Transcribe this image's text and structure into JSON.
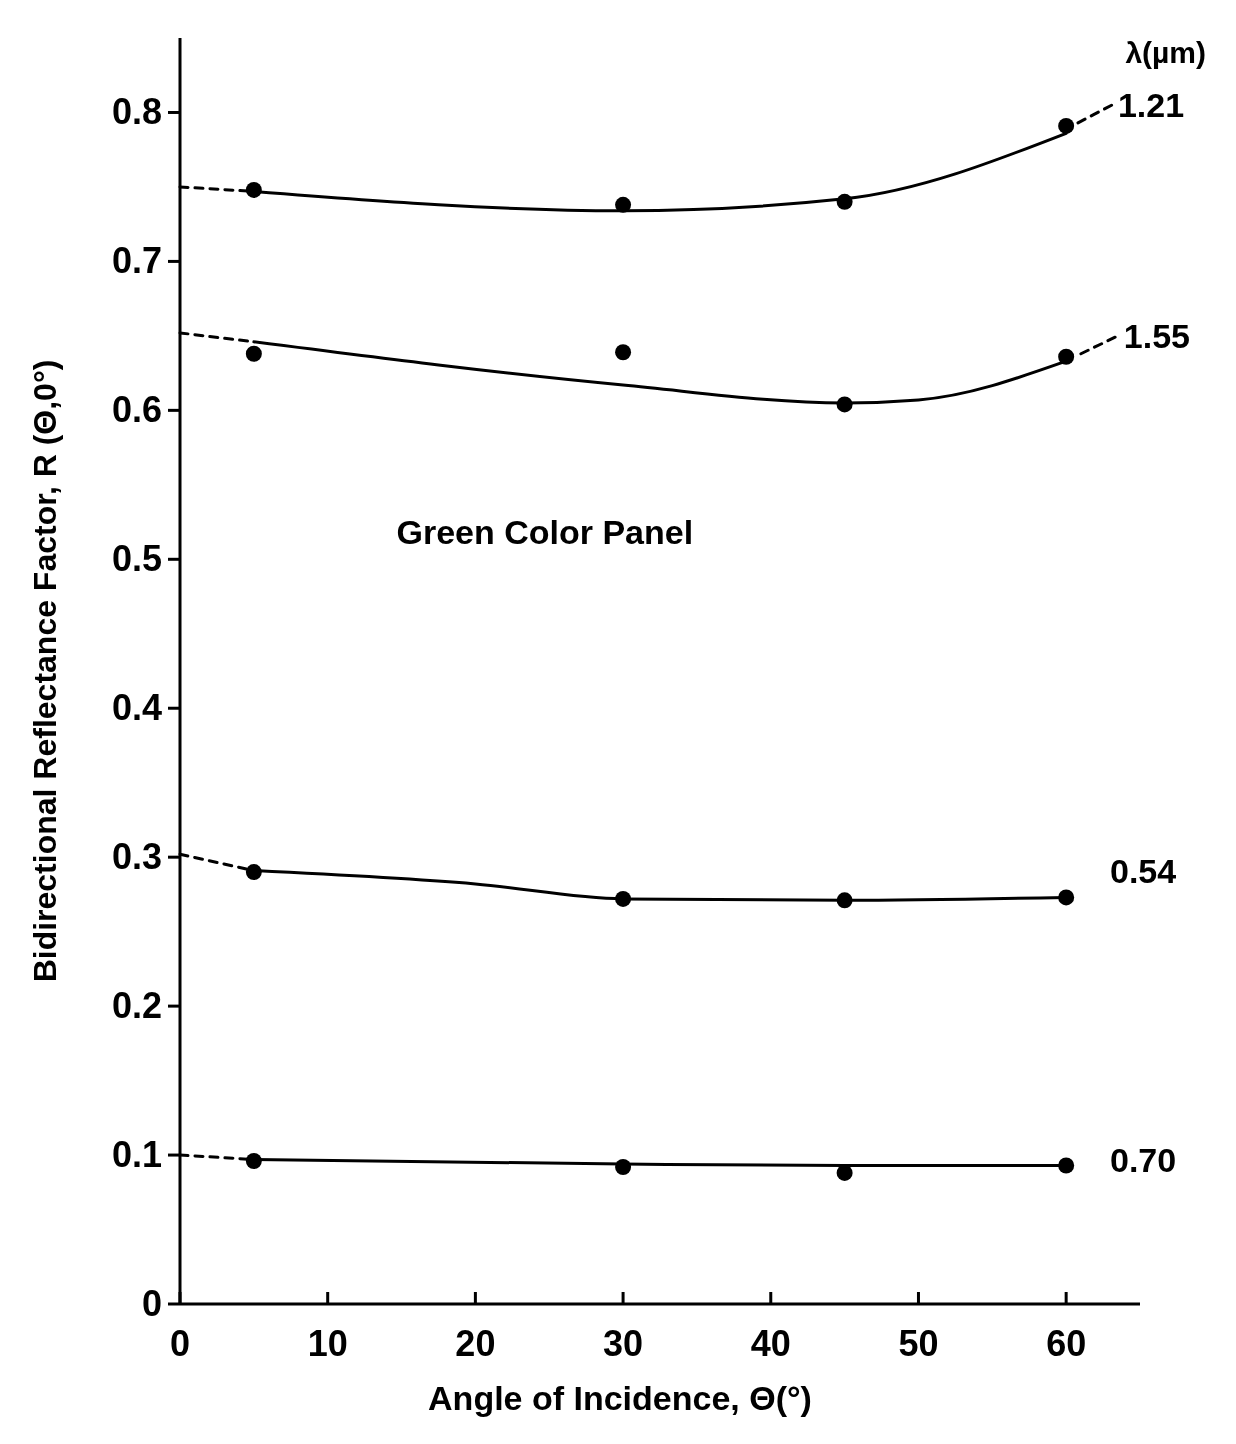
{
  "chart_data": {
    "type": "line",
    "xlabel": "Angle of Incidence, Θ(°)",
    "ylabel": "Bidirectional Reflectance Factor, R (Θ,0°)",
    "legend_title": "λ(µm)",
    "annotations": [
      "Green Color Panel"
    ],
    "xlim": [
      0,
      65
    ],
    "ylim": [
      0,
      0.85
    ],
    "xticks": [
      0,
      10,
      20,
      30,
      40,
      50,
      60
    ],
    "yticks": [
      0,
      0.1,
      0.2,
      0.3,
      0.4,
      0.5,
      0.6,
      0.7,
      0.8
    ],
    "grid": false,
    "series": [
      {
        "type": "scatter",
        "marker": "circle",
        "color": "#000000",
        "x": [
          5,
          30,
          45,
          60
        ],
        "values": [
          0.748,
          0.738,
          0.74,
          0.791
        ]
      },
      {
        "type": "scatter",
        "marker": "circle",
        "color": "#000000",
        "x": [
          5,
          30,
          45,
          60
        ],
        "values": [
          0.638,
          0.639,
          0.604,
          0.636
        ]
      },
      {
        "type": "scatter",
        "marker": "circle",
        "color": "#000000",
        "x": [
          5,
          30,
          45,
          60
        ],
        "values": [
          0.29,
          0.272,
          0.271,
          0.273
        ]
      },
      {
        "type": "scatter",
        "marker": "circle",
        "color": "#000000",
        "x": [
          5,
          30,
          45,
          60
        ],
        "values": [
          0.096,
          0.092,
          0.088,
          0.093
        ]
      },
      {
        "line_style": "solid",
        "color": "#000000",
        "x": [
          5,
          30,
          45,
          60
        ],
        "values": [
          0.747,
          0.734,
          0.742,
          0.786
        ]
      },
      {
        "line_style": "dashed",
        "color": "#000000",
        "name": "1.21",
        "x": [
          0,
          5,
          5.1,
          60.8,
          63.1
        ],
        "values": [
          0.75,
          0.747,
          null,
          0.793,
          0.805
        ]
      },
      {
        "line_style": "solid",
        "color": "#000000",
        "x": [
          5,
          30,
          45,
          50,
          60
        ],
        "values": [
          0.646,
          0.617,
          0.605,
          0.607,
          0.633
        ]
      },
      {
        "line_style": "dashed",
        "color": "#000000",
        "name": "1.55",
        "x": [
          0,
          5,
          5.1,
          61,
          63.5
        ],
        "values": [
          0.652,
          0.646,
          null,
          0.638,
          0.65
        ]
      },
      {
        "line_style": "solid",
        "color": "#000000",
        "x": [
          5,
          20,
          30,
          45,
          60
        ],
        "values": [
          0.291,
          0.282,
          0.272,
          0.271,
          0.273
        ]
      },
      {
        "line_style": "dashed",
        "color": "#000000",
        "name": "0.54",
        "x": [
          0,
          5
        ],
        "values": [
          0.302,
          0.291
        ]
      },
      {
        "line_style": "solid",
        "color": "#000000",
        "x": [
          5,
          30,
          45,
          60
        ],
        "values": [
          0.097,
          0.094,
          0.093,
          0.093
        ]
      },
      {
        "line_style": "dashed",
        "color": "#000000",
        "name": "0.70",
        "x": [
          0,
          5
        ],
        "values": [
          0.1,
          0.097
        ]
      }
    ]
  }
}
